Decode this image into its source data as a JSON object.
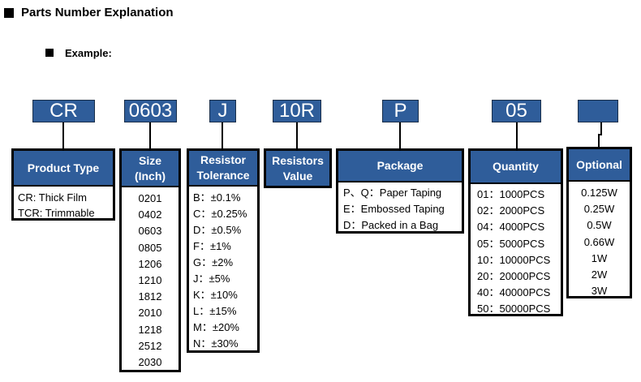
{
  "title": "Parts Number Explanation",
  "example_label": "Example:",
  "codes": [
    "CR",
    "0603",
    "J",
    "10R",
    "P",
    "05",
    ""
  ],
  "product_type": {
    "header": "Product Type",
    "items": [
      "CR: Thick Film",
      "TCR: Trimmable"
    ]
  },
  "size": {
    "header_line1": "Size",
    "header_line2": "(Inch)",
    "items": [
      "0201",
      "0402",
      "0603",
      "0805",
      "1206",
      "1210",
      "1812",
      "2010",
      "1218",
      "2512",
      "2030"
    ]
  },
  "tolerance": {
    "header_line1": "Resistor",
    "header_line2": "Tolerance",
    "items": [
      "B：±0.1%",
      "C：±0.25%",
      "D：±0.5%",
      "F：±1%",
      "G：±2%",
      "J：±5%",
      "K：±10%",
      "L：±15%",
      "M：±20%",
      "N：±30%"
    ]
  },
  "resistors_value": {
    "header_line1": "Resistors",
    "header_line2": "Value"
  },
  "package": {
    "header": "Package",
    "items": [
      "P、Q：Paper Taping",
      "E：Embossed Taping",
      "D：Packed in a Bag"
    ]
  },
  "quantity": {
    "header": "Quantity",
    "items": [
      "01：1000PCS",
      "02：2000PCS",
      "04：4000PCS",
      "05：5000PCS",
      "10：10000PCS",
      "20：20000PCS",
      "40：40000PCS",
      "50：50000PCS"
    ]
  },
  "optional": {
    "header": "Optional",
    "items": [
      "0.125W",
      "0.25W",
      "0.5W",
      "0.66W",
      "1W",
      "2W",
      "3W"
    ]
  }
}
